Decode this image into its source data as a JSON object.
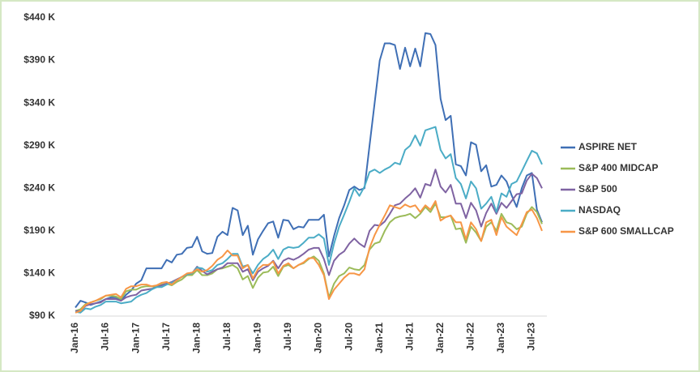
{
  "chart_data": {
    "type": "line",
    "categories": [
      "Jan-16",
      null,
      null,
      null,
      null,
      null,
      "Jul-16",
      null,
      null,
      null,
      null,
      null,
      "Jan-17",
      null,
      null,
      null,
      null,
      null,
      "Jul-17",
      null,
      null,
      null,
      null,
      null,
      "Jan-18",
      null,
      null,
      null,
      null,
      null,
      "Jul-18",
      null,
      null,
      null,
      null,
      null,
      "Jan-19",
      null,
      null,
      null,
      null,
      null,
      "Jul-19",
      null,
      null,
      null,
      null,
      null,
      "Jan-20",
      null,
      null,
      null,
      null,
      null,
      "Jul-20",
      null,
      null,
      null,
      null,
      null,
      "Jan-21",
      null,
      null,
      null,
      null,
      null,
      "Jul-21",
      null,
      null,
      null,
      null,
      null,
      "Jan-22",
      null,
      null,
      null,
      null,
      null,
      "Jul-22",
      null,
      null,
      null,
      null,
      null,
      "Jan-23",
      null,
      null,
      null,
      null,
      null,
      "Jul-23",
      null,
      null
    ],
    "ylim": [
      90,
      440
    ],
    "yticks": [
      {
        "value": 90,
        "label": "$90 K"
      },
      {
        "value": 140,
        "label": "$140 K"
      },
      {
        "value": 190,
        "label": "$190 K"
      },
      {
        "value": 240,
        "label": "$240 K"
      },
      {
        "value": 290,
        "label": "$290 K"
      },
      {
        "value": 340,
        "label": "$340 K"
      },
      {
        "value": 390,
        "label": "$390 K"
      },
      {
        "value": 440,
        "label": "$440 K"
      }
    ],
    "grid": false,
    "legend": "right",
    "series": [
      {
        "name": "ASPIRE NET",
        "color": "#3f6fb5",
        "values": [
          100,
          108,
          106,
          103,
          105,
          107,
          110,
          112,
          112,
          108,
          115,
          120,
          128,
          132,
          146,
          146,
          146,
          146,
          156,
          153,
          162,
          163,
          170,
          171,
          183,
          166,
          163,
          164,
          183,
          189,
          185,
          217,
          214,
          185,
          196,
          162,
          180,
          190,
          199,
          201,
          182,
          203,
          202,
          192,
          195,
          194,
          203,
          203,
          203,
          209,
          160,
          184,
          205,
          220,
          238,
          242,
          238,
          240,
          290,
          340,
          390,
          410,
          410,
          408,
          380,
          405,
          383,
          404,
          383,
          422,
          421,
          408,
          345,
          320,
          325,
          268,
          266,
          255,
          294,
          291,
          260,
          267,
          242,
          244,
          255,
          248,
          232,
          218,
          240,
          255,
          258,
          215,
          200
        ]
      },
      {
        "name": "S&P 400 MIDCAP",
        "color": "#9bbb59",
        "values": [
          96,
          98,
          104,
          106,
          108,
          110,
          114,
          114,
          113,
          110,
          119,
          121,
          121,
          124,
          125,
          125,
          124,
          127,
          128,
          126,
          130,
          133,
          138,
          138,
          144,
          138,
          138,
          140,
          145,
          146,
          148,
          150,
          146,
          133,
          137,
          123,
          135,
          141,
          142,
          148,
          137,
          148,
          150,
          146,
          150,
          152,
          157,
          160,
          155,
          140,
          112,
          128,
          137,
          140,
          147,
          145,
          144,
          150,
          168,
          175,
          177,
          190,
          200,
          205,
          207,
          208,
          210,
          205,
          210,
          218,
          212,
          222,
          206,
          206,
          208,
          192,
          193,
          176,
          195,
          188,
          178,
          195,
          200,
          190,
          210,
          200,
          198,
          192,
          195,
          210,
          218,
          212,
          198
        ]
      },
      {
        "name": "S&P 500",
        "color": "#7f63a2",
        "values": [
          96,
          96,
          102,
          104,
          105,
          106,
          110,
          110,
          110,
          108,
          112,
          114,
          115,
          120,
          121,
          122,
          124,
          126,
          128,
          130,
          133,
          136,
          139,
          140,
          148,
          143,
          139,
          142,
          145,
          147,
          152,
          152,
          152,
          142,
          145,
          132,
          142,
          146,
          149,
          155,
          146,
          155,
          158,
          156,
          159,
          163,
          168,
          170,
          170,
          157,
          138,
          155,
          162,
          166,
          175,
          181,
          175,
          171,
          190,
          197,
          196,
          201,
          210,
          220,
          222,
          228,
          233,
          240,
          229,
          245,
          243,
          262,
          242,
          235,
          244,
          222,
          222,
          205,
          223,
          214,
          195,
          211,
          222,
          210,
          223,
          217,
          225,
          233,
          234,
          249,
          257,
          252,
          240
        ]
      },
      {
        "name": "NASDAQ",
        "color": "#4bacc6",
        "values": [
          95,
          94,
          99,
          98,
          101,
          103,
          107,
          107,
          107,
          105,
          106,
          107,
          112,
          115,
          117,
          121,
          124,
          124,
          127,
          129,
          132,
          136,
          139,
          140,
          147,
          146,
          142,
          144,
          150,
          152,
          157,
          163,
          163,
          148,
          150,
          140,
          150,
          157,
          161,
          168,
          157,
          168,
          171,
          170,
          171,
          176,
          182,
          182,
          186,
          181,
          150,
          175,
          195,
          209,
          224,
          240,
          231,
          242,
          259,
          262,
          258,
          262,
          265,
          270,
          268,
          285,
          290,
          302,
          290,
          308,
          310,
          312,
          285,
          275,
          280,
          252,
          245,
          228,
          248,
          240,
          216,
          222,
          230,
          212,
          234,
          230,
          245,
          248,
          260,
          272,
          284,
          281,
          268
        ]
      },
      {
        "name": "S&P 600 SMALLCAP",
        "color": "#f79646",
        "values": [
          94,
          96,
          103,
          106,
          108,
          111,
          114,
          115,
          116,
          112,
          122,
          125,
          125,
          127,
          127,
          125,
          126,
          129,
          130,
          127,
          132,
          136,
          140,
          141,
          145,
          142,
          144,
          149,
          156,
          160,
          167,
          161,
          161,
          146,
          150,
          134,
          145,
          150,
          150,
          154,
          140,
          149,
          152,
          146,
          150,
          153,
          158,
          158,
          150,
          138,
          110,
          121,
          128,
          135,
          140,
          140,
          138,
          145,
          170,
          185,
          197,
          208,
          220,
          218,
          216,
          221,
          218,
          220,
          212,
          220,
          215,
          225,
          202,
          206,
          208,
          200,
          200,
          180,
          200,
          192,
          178,
          200,
          203,
          185,
          206,
          195,
          190,
          185,
          198,
          212,
          215,
          205,
          190
        ]
      }
    ]
  }
}
